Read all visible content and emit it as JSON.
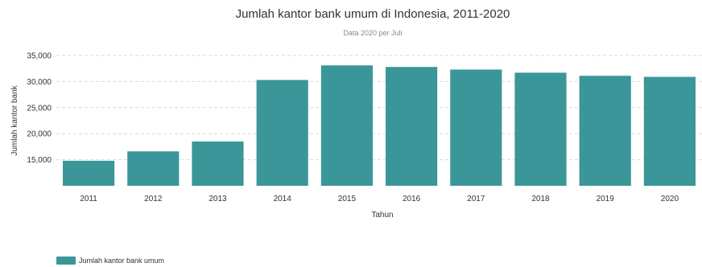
{
  "chart_data": {
    "type": "bar",
    "title": "Jumlah kantor bank umum di Indonesia, 2011-2020",
    "subtitle": "Data 2020 per Juli",
    "xlabel": "Tahun",
    "ylabel": "Jumlah kantor bank",
    "categories": [
      "2011",
      "2012",
      "2013",
      "2014",
      "2015",
      "2016",
      "2017",
      "2018",
      "2019",
      "2020"
    ],
    "series": [
      {
        "name": "Jumlah kantor bank umum",
        "color": "#3a9699",
        "values": [
          14800,
          16600,
          18500,
          30300,
          33100,
          32800,
          32300,
          31700,
          31100,
          30900
        ]
      }
    ],
    "ylim": [
      10000,
      35000
    ],
    "yticks": [
      15000,
      20000,
      25000,
      30000,
      35000
    ],
    "ytick_labels": [
      "15,000",
      "20,000",
      "25,000",
      "30,000",
      "35,000"
    ],
    "grid": true,
    "legend_position": "bottom-left"
  }
}
